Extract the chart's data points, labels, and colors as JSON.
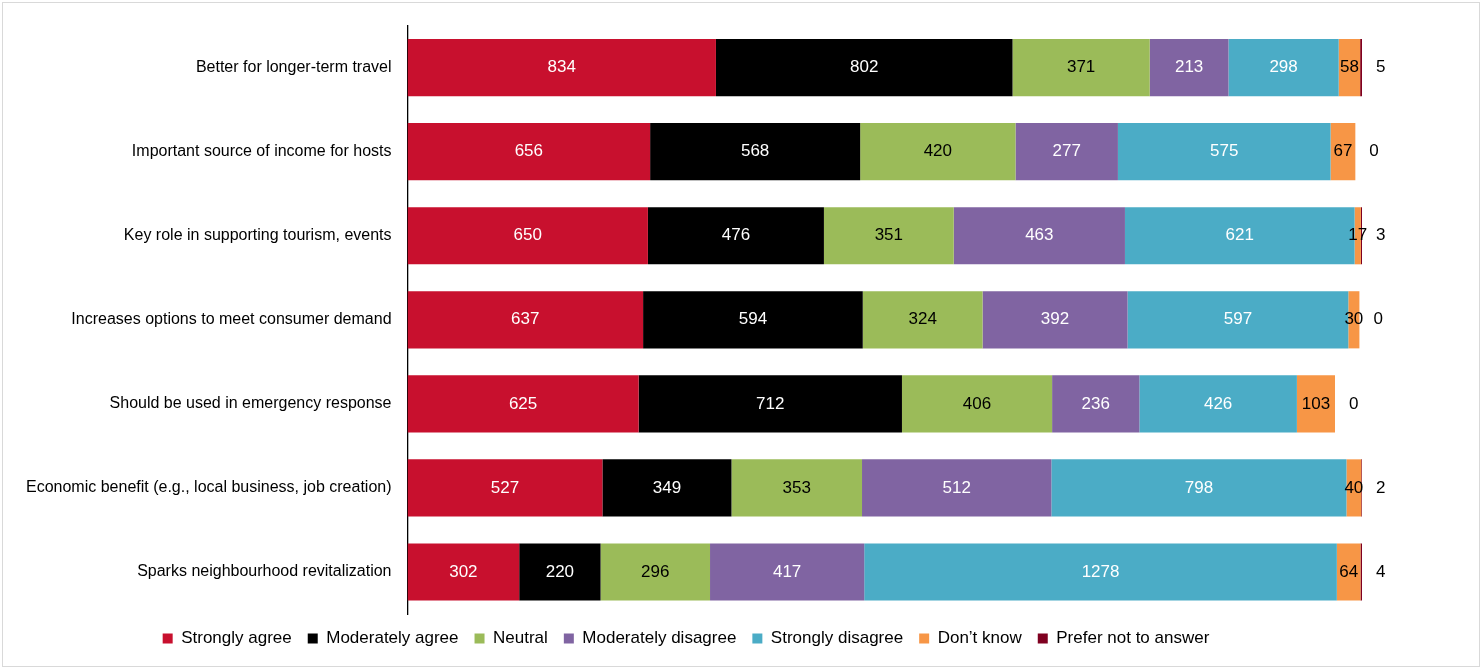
{
  "chart_data": {
    "type": "bar",
    "orientation": "horizontal",
    "stacked": true,
    "data_labels": true,
    "legend": "bottom",
    "tick_labels": "y",
    "categories": [
      "Better for longer-term travel",
      "Important source of income for hosts",
      "Key role in supporting tourism, events",
      "Increases options to meet consumer demand",
      "Should be used in emergency response",
      "Economic benefit (e.g., local business, job creation)",
      "Sparks neighbourhood revitalization"
    ],
    "series": [
      {
        "name": "Strongly agree",
        "color": "#c8102e",
        "values": [
          834,
          656,
          650,
          637,
          625,
          527,
          302
        ]
      },
      {
        "name": "Moderately agree",
        "color": "#000000",
        "values": [
          802,
          568,
          476,
          594,
          712,
          349,
          220
        ]
      },
      {
        "name": "Neutral",
        "color": "#9bbb59",
        "values": [
          371,
          420,
          351,
          324,
          406,
          353,
          296
        ]
      },
      {
        "name": "Moderately disagree",
        "color": "#8064a2",
        "values": [
          213,
          277,
          463,
          392,
          236,
          512,
          417
        ]
      },
      {
        "name": "Strongly disagree",
        "color": "#4bacc6",
        "values": [
          298,
          575,
          621,
          597,
          426,
          798,
          1278
        ]
      },
      {
        "name": "Don’t know",
        "color": "#f79646",
        "values": [
          58,
          67,
          17,
          30,
          103,
          40,
          64
        ]
      },
      {
        "name": "Prefer not to answer",
        "color": "#7f0020",
        "values": [
          5,
          0,
          3,
          0,
          0,
          2,
          4
        ]
      }
    ]
  }
}
